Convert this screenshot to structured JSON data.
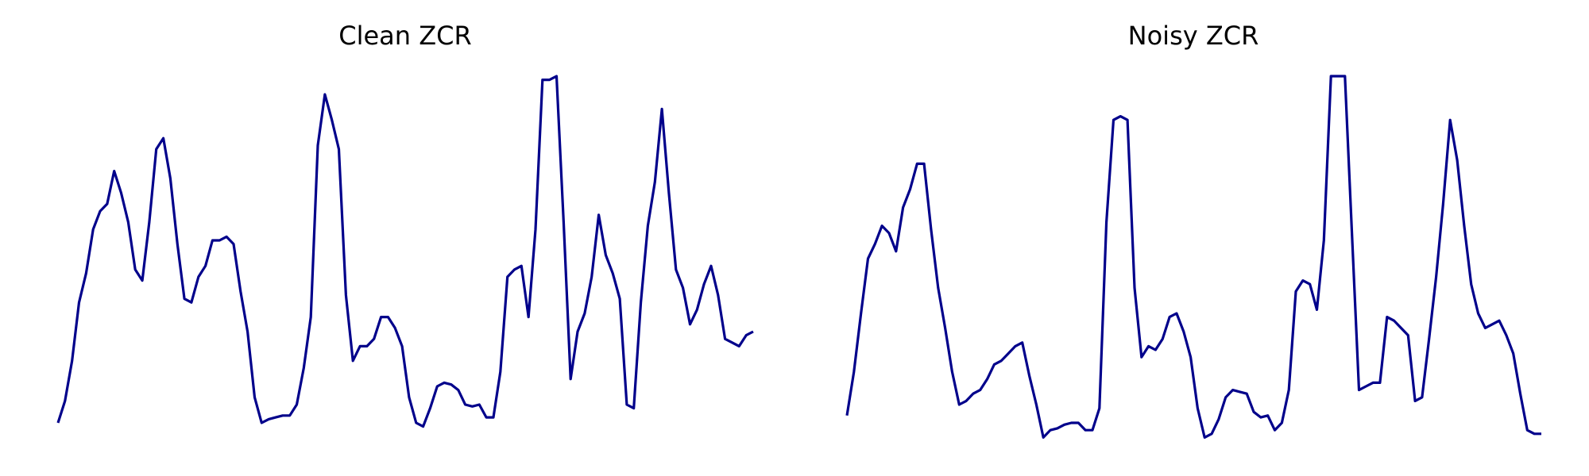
{
  "chart_data": [
    {
      "type": "line",
      "title": "Clean ZCR",
      "axes_visible": false,
      "grid": false,
      "ylim": [
        0,
        1
      ],
      "color": "#00008b",
      "x": [
        0,
        1,
        2,
        3,
        4,
        5,
        6,
        7,
        8,
        9,
        10,
        11,
        12,
        13,
        14,
        15,
        16,
        17,
        18,
        19,
        20,
        21,
        22,
        23,
        24,
        25,
        26,
        27,
        28,
        29,
        30,
        31,
        32,
        33,
        34,
        35,
        36,
        37,
        38,
        39,
        40,
        41,
        42,
        43,
        44,
        45,
        46,
        47,
        48,
        49,
        50,
        51,
        52,
        53,
        54,
        55,
        56,
        57,
        58,
        59,
        60,
        61,
        62,
        63,
        64,
        65,
        66,
        67,
        68,
        69,
        70,
        71,
        72,
        73,
        74,
        75,
        76,
        77,
        78,
        79,
        80,
        81,
        82,
        83,
        84,
        85,
        86,
        87,
        88,
        89,
        90,
        91,
        92,
        93,
        94,
        95,
        96,
        97,
        98,
        99
      ],
      "y": [
        0.05,
        0.11,
        0.22,
        0.38,
        0.46,
        0.58,
        0.63,
        0.65,
        0.74,
        0.68,
        0.6,
        0.47,
        0.44,
        0.6,
        0.8,
        0.83,
        0.72,
        0.54,
        0.39,
        0.38,
        0.45,
        0.48,
        0.55,
        0.55,
        0.56,
        0.54,
        0.41,
        0.3,
        0.12,
        0.05,
        0.06,
        0.065,
        0.07,
        0.07,
        0.1,
        0.2,
        0.34,
        0.81,
        0.95,
        0.88,
        0.8,
        0.4,
        0.22,
        0.26,
        0.26,
        0.28,
        0.34,
        0.34,
        0.31,
        0.26,
        0.12,
        0.05,
        0.04,
        0.09,
        0.15,
        0.16,
        0.155,
        0.14,
        0.1,
        0.095,
        0.1,
        0.065,
        0.065,
        0.19,
        0.45,
        0.47,
        0.48,
        0.34,
        0.58,
        0.99,
        0.99,
        1.0,
        0.6,
        0.17,
        0.3,
        0.35,
        0.45,
        0.62,
        0.51,
        0.46,
        0.39,
        0.1,
        0.09,
        0.38,
        0.59,
        0.71,
        0.91,
        0.68,
        0.47,
        0.42,
        0.32,
        0.36,
        0.43,
        0.48,
        0.4,
        0.28,
        0.27,
        0.26,
        0.29,
        0.3
      ]
    },
    {
      "type": "line",
      "title": "Noisy ZCR",
      "axes_visible": false,
      "grid": false,
      "ylim": [
        0,
        1
      ],
      "color": "#00008b",
      "x": [
        0,
        1,
        2,
        3,
        4,
        5,
        6,
        7,
        8,
        9,
        10,
        11,
        12,
        13,
        14,
        15,
        16,
        17,
        18,
        19,
        20,
        21,
        22,
        23,
        24,
        25,
        26,
        27,
        28,
        29,
        30,
        31,
        32,
        33,
        34,
        35,
        36,
        37,
        38,
        39,
        40,
        41,
        42,
        43,
        44,
        45,
        46,
        47,
        48,
        49,
        50,
        51,
        52,
        53,
        54,
        55,
        56,
        57,
        58,
        59,
        60,
        61,
        62,
        63,
        64,
        65,
        66,
        67,
        68,
        69,
        70,
        71,
        72,
        73,
        74,
        75,
        76,
        77,
        78,
        79,
        80,
        81,
        82,
        83,
        84,
        85,
        86,
        87,
        88,
        89,
        90,
        91,
        92,
        93,
        94,
        95,
        96,
        97,
        98,
        99
      ],
      "y": [
        0.07,
        0.19,
        0.35,
        0.5,
        0.54,
        0.59,
        0.57,
        0.52,
        0.64,
        0.69,
        0.76,
        0.76,
        0.58,
        0.42,
        0.31,
        0.19,
        0.1,
        0.11,
        0.13,
        0.14,
        0.17,
        0.21,
        0.22,
        0.24,
        0.26,
        0.27,
        0.18,
        0.1,
        0.01,
        0.03,
        0.035,
        0.045,
        0.05,
        0.05,
        0.03,
        0.03,
        0.09,
        0.6,
        0.88,
        0.89,
        0.88,
        0.42,
        0.23,
        0.26,
        0.25,
        0.28,
        0.34,
        0.35,
        0.3,
        0.23,
        0.09,
        0.01,
        0.02,
        0.06,
        0.12,
        0.14,
        0.135,
        0.13,
        0.08,
        0.065,
        0.07,
        0.03,
        0.05,
        0.14,
        0.41,
        0.44,
        0.43,
        0.36,
        0.55,
        1.0,
        1.0,
        1.0,
        0.57,
        0.14,
        0.15,
        0.16,
        0.16,
        0.34,
        0.33,
        0.31,
        0.29,
        0.11,
        0.12,
        0.28,
        0.45,
        0.65,
        0.88,
        0.77,
        0.59,
        0.43,
        0.35,
        0.31,
        0.32,
        0.33,
        0.29,
        0.24,
        0.13,
        0.03,
        0.02,
        0.02
      ]
    }
  ]
}
